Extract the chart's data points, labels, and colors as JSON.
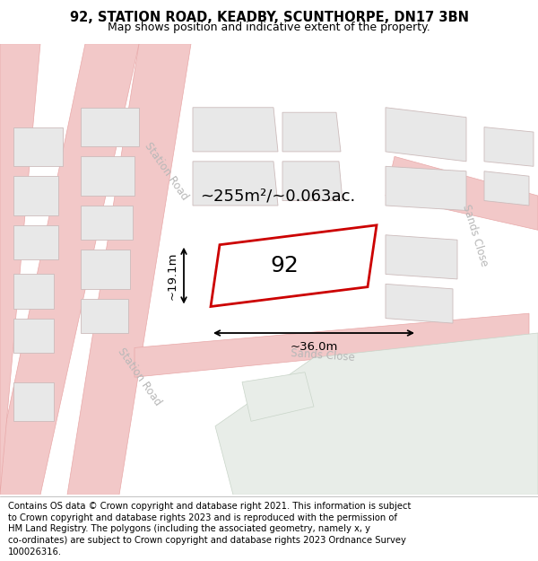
{
  "title": "92, STATION ROAD, KEADBY, SCUNTHORPE, DN17 3BN",
  "subtitle": "Map shows position and indicative extent of the property.",
  "map_bg": "#f8f8f8",
  "road_color": "#f2c8c8",
  "road_edge_color": "#e8a8a8",
  "building_fill": "#e8e8e8",
  "building_outline": "#ccbbbb",
  "property_outline": "#cc0000",
  "property_fill": "#ffffff",
  "green_fill": "#e8ede8",
  "green_outline": "#c8d4c8",
  "area_text": "~255m²/~0.063ac.",
  "label_92": "92",
  "dim_width": "~36.0m",
  "dim_height": "~19.1m",
  "road_label_station1": "Station Road",
  "road_label_station2": "Station Road",
  "road_label_sands": "Sands Close",
  "road_label_sands2": "Sands Close",
  "footer_lines": [
    "Contains OS data © Crown copyright and database right 2021. This information is subject",
    "to Crown copyright and database rights 2023 and is reproduced with the permission of",
    "HM Land Registry. The polygons (including the associated geometry, namely x, y",
    "co-ordinates) are subject to Crown copyright and database rights 2023 Ordnance Survey",
    "100026316."
  ],
  "title_fontsize": 10.5,
  "subtitle_fontsize": 9,
  "footer_fontsize": 7.2,
  "area_fontsize": 13,
  "label_fontsize": 18,
  "road_label_fontsize": 8.5,
  "dim_fontsize": 9.5
}
